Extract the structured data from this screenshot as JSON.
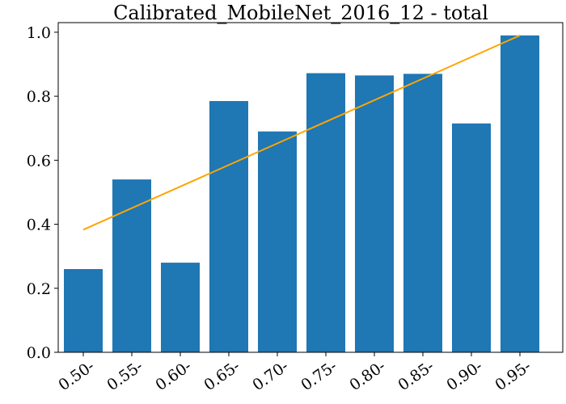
{
  "chart_data": {
    "type": "bar",
    "title": "Calibrated_MobileNet_2016_12 - total",
    "xlabel": "",
    "ylabel": "",
    "categories": [
      "0.50-",
      "0.55-",
      "0.60-",
      "0.65-",
      "0.70-",
      "0.75-",
      "0.80-",
      "0.85-",
      "0.90-",
      "0.95-"
    ],
    "series": [
      {
        "values": [
          0.26,
          0.54,
          0.28,
          0.785,
          0.69,
          0.872,
          0.865,
          0.87,
          0.715,
          0.99
        ]
      }
    ],
    "reference_line": {
      "type": "line",
      "from": 0.383,
      "to": 0.99
    },
    "ylim": [
      0,
      1.03
    ],
    "yticks": [
      "0.0",
      "0.2",
      "0.4",
      "0.6",
      "0.8",
      "1.0"
    ],
    "ytick_values": [
      0,
      0.2,
      0.4,
      0.6,
      0.8,
      1.0
    ],
    "colors": {
      "bar": "#1f77b4",
      "line": "#ffa500"
    },
    "grid": false,
    "legend": "none"
  }
}
